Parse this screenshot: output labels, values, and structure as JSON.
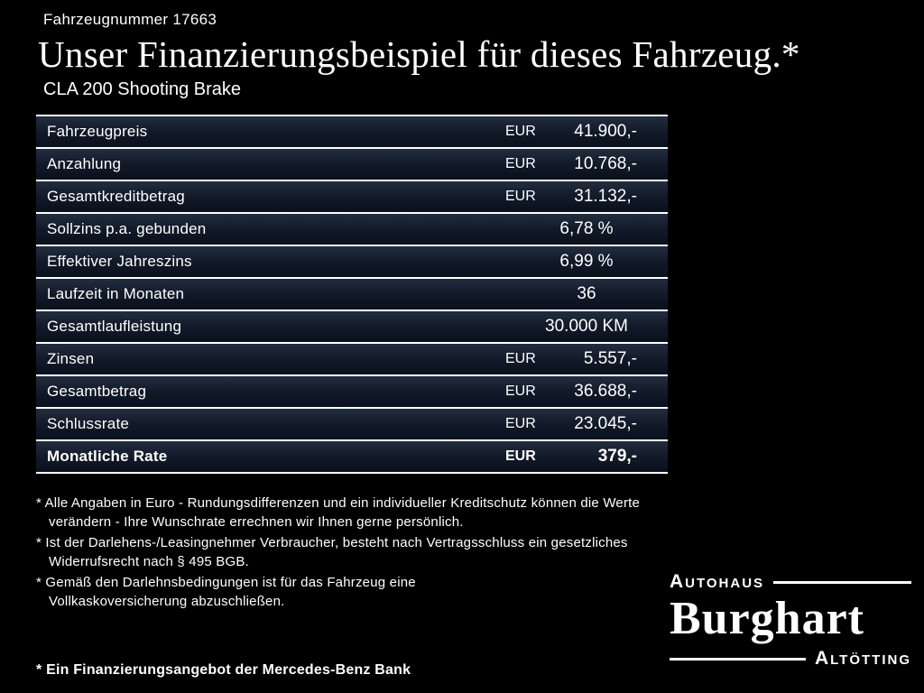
{
  "header": {
    "vehicle_number": "Fahrzeugnummer 17663",
    "title": "Unser Finanzierungsbeispiel für dieses Fahrzeug.*",
    "subtitle": "CLA 200 Shooting Brake"
  },
  "table": {
    "rows": [
      {
        "label": "Fahrzeugpreis",
        "currency": "EUR",
        "value": "41.900,-",
        "bold": false
      },
      {
        "label": "Anzahlung",
        "currency": "EUR",
        "value": "10.768,-",
        "bold": false
      },
      {
        "label": "Gesamtkreditbetrag",
        "currency": "EUR",
        "value": "31.132,-",
        "bold": false
      },
      {
        "label": "Sollzins p.a. gebunden",
        "currency": "",
        "value": "6,78 %",
        "bold": false
      },
      {
        "label": "Effektiver Jahreszins",
        "currency": "",
        "value": "6,99 %",
        "bold": false
      },
      {
        "label": "Laufzeit in Monaten",
        "currency": "",
        "value": "36",
        "bold": false
      },
      {
        "label": "Gesamtlaufleistung",
        "currency": "",
        "value": "30.000 KM",
        "bold": false
      },
      {
        "label": "Zinsen",
        "currency": "EUR",
        "value": "5.557,-",
        "bold": false
      },
      {
        "label": "Gesamtbetrag",
        "currency": "EUR",
        "value": "36.688,-",
        "bold": false
      },
      {
        "label": "Schlussrate",
        "currency": "EUR",
        "value": "23.045,-",
        "bold": false
      },
      {
        "label": "Monatliche Rate",
        "currency": "EUR",
        "value": "379,-",
        "bold": true
      }
    ]
  },
  "footnotes": [
    "* Alle Angaben in Euro - Rundungsdifferenzen und ein individueller Kreditschutz können die Werte verändern - Ihre Wunschrate errechnen wir Ihnen gerne persönlich.",
    "* Ist der Darlehens-/Leasingnehmer Verbraucher, besteht nach Vertragsschluss ein gesetzliches Widerrufsrecht nach § 495 BGB.",
    "* Gemäß den Darlehnsbedingungen ist für das Fahrzeug eine Vollkaskoversicherung abzuschließen."
  ],
  "offer_note": "* Ein Finanzierungsangebot der Mercedes-Benz Bank",
  "logo": {
    "top": "Autohaus",
    "name": "Burghart",
    "bottom": "Altötting"
  },
  "colors": {
    "background": "#000000",
    "text": "#ffffff",
    "row_background_top": "#222d3f",
    "row_background_bottom": "#0a101c",
    "separator": "#ffffff"
  }
}
